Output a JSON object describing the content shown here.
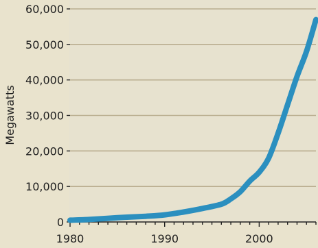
{
  "chart_data": {
    "type": "line",
    "title": "",
    "xlabel": "",
    "ylabel": "Megawatts",
    "xlim": [
      1980,
      2006
    ],
    "ylim": [
      0,
      60000
    ],
    "grid": true,
    "legend": "none",
    "x_ticks": [
      {
        "value": 1980,
        "label": "1980"
      },
      {
        "value": 1990,
        "label": "1990"
      },
      {
        "value": 2000,
        "label": "2000"
      }
    ],
    "y_ticks": [
      {
        "value": 0,
        "label": "0"
      },
      {
        "value": 10000,
        "label": "10,000"
      },
      {
        "value": 20000,
        "label": "20,000"
      },
      {
        "value": 30000,
        "label": "30,000"
      },
      {
        "value": 40000,
        "label": "40,000"
      },
      {
        "value": 50000,
        "label": "50,000"
      },
      {
        "value": 60000,
        "label": "60,000"
      }
    ],
    "series": [
      {
        "color": "#2b8fbf",
        "x": [
          1980,
          1982,
          1985,
          1988,
          1990,
          1992,
          1994,
          1996,
          1997,
          1998,
          1999,
          2000,
          2001,
          2002,
          2003,
          2004,
          2005,
          2006
        ],
        "y": [
          500,
          700,
          1200,
          1600,
          2000,
          2800,
          3800,
          5000,
          6500,
          8500,
          11500,
          14000,
          18000,
          25000,
          33000,
          41000,
          48000,
          57000
        ]
      }
    ]
  }
}
